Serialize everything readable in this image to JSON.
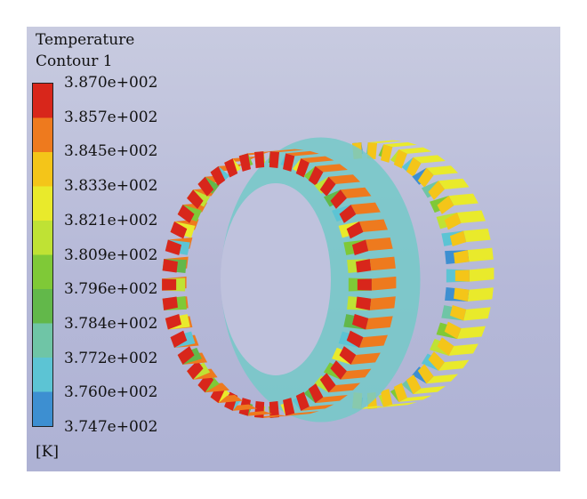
{
  "legend": {
    "title_line1": "Temperature",
    "title_line2": "Contour 1",
    "values": [
      "3.870e+002",
      "3.857e+002",
      "3.845e+002",
      "3.833e+002",
      "3.821e+002",
      "3.809e+002",
      "3.796e+002",
      "3.784e+002",
      "3.772e+002",
      "3.760e+002",
      "3.747e+002"
    ],
    "unit": "[K]",
    "colors": [
      "#d8261b",
      "#ee7a1e",
      "#f4c519",
      "#e9ea2b",
      "#bfe234",
      "#7fc937",
      "#62b84a",
      "#6fc5a6",
      "#5cc4d4",
      "#3d8fd1",
      "#3f3f8c"
    ]
  }
}
